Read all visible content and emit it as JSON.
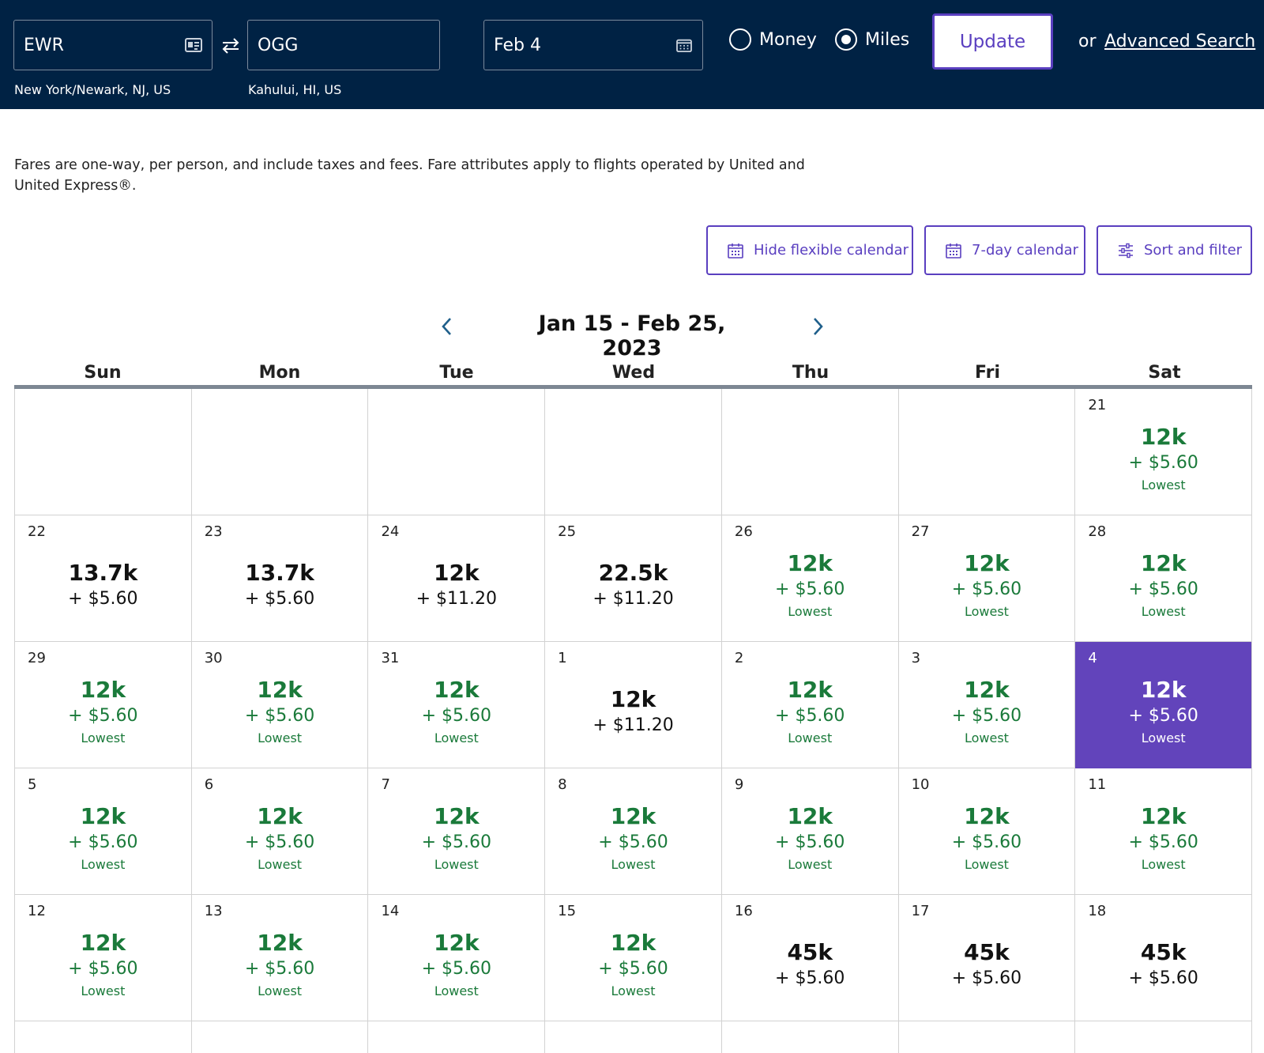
{
  "search": {
    "origin_code": "EWR",
    "origin_city": "New York/Newark, NJ, US",
    "dest_code": "OGG",
    "dest_city": "Kahului, HI, US",
    "date": "Feb 4",
    "mode_money": "Money",
    "mode_miles": "Miles",
    "selected_mode": "Miles",
    "update_label": "Update",
    "or_label": "or",
    "advanced_label": "Advanced Search"
  },
  "info_text": "Fares are one-way, per person, and include taxes and fees. Fare attributes apply to flights operated by United and United Express®.",
  "tools": {
    "hide_flex": "Hide flexible calendar",
    "seven_day": "7-day calendar",
    "sort_filter": "Sort and filter"
  },
  "range_title": "Jan 15 - Feb 25, 2023",
  "weekdays": [
    "Sun",
    "Mon",
    "Tue",
    "Wed",
    "Thu",
    "Fri",
    "Sat"
  ],
  "colors": {
    "header_bg": "#002244",
    "accent": "#6244bb",
    "lowest_green": "#1a7a3a"
  },
  "calendar": {
    "rows": [
      [
        null,
        null,
        null,
        null,
        null,
        null,
        {
          "day": "21",
          "miles": "12k",
          "tax": "+ $5.60",
          "lowest": "Lowest"
        }
      ],
      [
        {
          "day": "22",
          "miles": "13.7k",
          "tax": "+ $5.60"
        },
        {
          "day": "23",
          "miles": "13.7k",
          "tax": "+ $5.60"
        },
        {
          "day": "24",
          "miles": "12k",
          "tax": "+ $11.20"
        },
        {
          "day": "25",
          "miles": "22.5k",
          "tax": "+ $11.20"
        },
        {
          "day": "26",
          "miles": "12k",
          "tax": "+ $5.60",
          "lowest": "Lowest"
        },
        {
          "day": "27",
          "miles": "12k",
          "tax": "+ $5.60",
          "lowest": "Lowest"
        },
        {
          "day": "28",
          "miles": "12k",
          "tax": "+ $5.60",
          "lowest": "Lowest"
        }
      ],
      [
        {
          "day": "29",
          "miles": "12k",
          "tax": "+ $5.60",
          "lowest": "Lowest"
        },
        {
          "day": "30",
          "miles": "12k",
          "tax": "+ $5.60",
          "lowest": "Lowest"
        },
        {
          "day": "31",
          "miles": "12k",
          "tax": "+ $5.60",
          "lowest": "Lowest"
        },
        {
          "day": "1",
          "miles": "12k",
          "tax": "+ $11.20"
        },
        {
          "day": "2",
          "miles": "12k",
          "tax": "+ $5.60",
          "lowest": "Lowest"
        },
        {
          "day": "3",
          "miles": "12k",
          "tax": "+ $5.60",
          "lowest": "Lowest"
        },
        {
          "day": "4",
          "miles": "12k",
          "tax": "+ $5.60",
          "lowest": "Lowest",
          "selected": true
        }
      ],
      [
        {
          "day": "5",
          "miles": "12k",
          "tax": "+ $5.60",
          "lowest": "Lowest"
        },
        {
          "day": "6",
          "miles": "12k",
          "tax": "+ $5.60",
          "lowest": "Lowest"
        },
        {
          "day": "7",
          "miles": "12k",
          "tax": "+ $5.60",
          "lowest": "Lowest"
        },
        {
          "day": "8",
          "miles": "12k",
          "tax": "+ $5.60",
          "lowest": "Lowest"
        },
        {
          "day": "9",
          "miles": "12k",
          "tax": "+ $5.60",
          "lowest": "Lowest"
        },
        {
          "day": "10",
          "miles": "12k",
          "tax": "+ $5.60",
          "lowest": "Lowest"
        },
        {
          "day": "11",
          "miles": "12k",
          "tax": "+ $5.60",
          "lowest": "Lowest"
        }
      ],
      [
        {
          "day": "12",
          "miles": "12k",
          "tax": "+ $5.60",
          "lowest": "Lowest"
        },
        {
          "day": "13",
          "miles": "12k",
          "tax": "+ $5.60",
          "lowest": "Lowest"
        },
        {
          "day": "14",
          "miles": "12k",
          "tax": "+ $5.60",
          "lowest": "Lowest"
        },
        {
          "day": "15",
          "miles": "12k",
          "tax": "+ $5.60",
          "lowest": "Lowest"
        },
        {
          "day": "16",
          "miles": "45k",
          "tax": "+ $5.60"
        },
        {
          "day": "17",
          "miles": "45k",
          "tax": "+ $5.60"
        },
        {
          "day": "18",
          "miles": "45k",
          "tax": "+ $5.60"
        }
      ]
    ]
  }
}
